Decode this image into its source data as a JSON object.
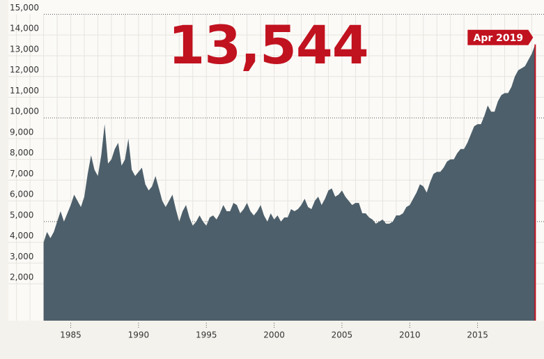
{
  "chart_data": {
    "type": "area",
    "headline": "13,544",
    "annotation": "Apr 2019",
    "color": "#4d5f6a",
    "accent": "#c1121f",
    "grid": true,
    "xlim": [
      1980.4,
      2019.9
    ],
    "xticks": [
      1985,
      1990,
      1995,
      2000,
      2005,
      2010,
      2015
    ],
    "ylim": [
      220,
      15000
    ],
    "yticks": [
      {
        "value": 2000,
        "label": "2,000"
      },
      {
        "value": 3000,
        "label": "3,000"
      },
      {
        "value": 4000,
        "label": "4,000"
      },
      {
        "value": 5000,
        "label": "5,000"
      },
      {
        "value": 6000,
        "label": "6,000"
      },
      {
        "value": 7000,
        "label": "7,000"
      },
      {
        "value": 8000,
        "label": "8,000"
      },
      {
        "value": 9000,
        "label": "9,000"
      },
      {
        "value": 10000,
        "label": "10,000"
      },
      {
        "value": 11000,
        "label": "11,000"
      },
      {
        "value": 12000,
        "label": "12,000"
      },
      {
        "value": 13000,
        "label": "13,000"
      },
      {
        "value": 14000,
        "label": "14,000"
      },
      {
        "value": 15000,
        "label": "15,000"
      }
    ],
    "x": [
      1983,
      1983.25,
      1983.5,
      1983.75,
      1984,
      1984.25,
      1984.5,
      1984.75,
      1985,
      1985.25,
      1985.5,
      1985.75,
      1986,
      1986.25,
      1986.5,
      1986.75,
      1987,
      1987.25,
      1987.5,
      1987.75,
      1988,
      1988.25,
      1988.5,
      1988.75,
      1989,
      1989.25,
      1989.5,
      1989.75,
      1990,
      1990.25,
      1990.5,
      1990.75,
      1991,
      1991.25,
      1991.5,
      1991.75,
      1992,
      1992.25,
      1992.5,
      1992.75,
      1993,
      1993.25,
      1993.5,
      1993.75,
      1994,
      1994.25,
      1994.5,
      1994.75,
      1995,
      1995.25,
      1995.5,
      1995.75,
      1996,
      1996.25,
      1996.5,
      1996.75,
      1997,
      1997.25,
      1997.5,
      1997.75,
      1998,
      1998.25,
      1998.5,
      1998.75,
      1999,
      1999.25,
      1999.5,
      1999.75,
      2000,
      2000.25,
      2000.5,
      2000.75,
      2001,
      2001.25,
      2001.5,
      2001.75,
      2002,
      2002.25,
      2002.5,
      2002.75,
      2003,
      2003.25,
      2003.5,
      2003.75,
      2004,
      2004.25,
      2004.5,
      2004.75,
      2005,
      2005.25,
      2005.5,
      2005.75,
      2006,
      2006.25,
      2006.5,
      2006.75,
      2007,
      2007.25,
      2007.5,
      2007.75,
      2008,
      2008.25,
      2008.5,
      2008.75,
      2009,
      2009.25,
      2009.5,
      2009.75,
      2010,
      2010.25,
      2010.5,
      2010.75,
      2011,
      2011.25,
      2011.5,
      2011.75,
      2012,
      2012.25,
      2012.5,
      2012.75,
      2013,
      2013.25,
      2013.5,
      2013.75,
      2014,
      2014.25,
      2014.5,
      2014.75,
      2015,
      2015.25,
      2015.5,
      2015.75,
      2016,
      2016.25,
      2016.5,
      2016.75,
      2017,
      2017.25,
      2017.5,
      2017.75,
      2018,
      2018.25,
      2018.5,
      2018.75,
      2019,
      2019.25
    ],
    "values": [
      4000,
      4500,
      4200,
      4500,
      5000,
      5500,
      5000,
      5400,
      5800,
      6300,
      6000,
      5700,
      6200,
      7300,
      8200,
      7500,
      7200,
      8200,
      9700,
      7800,
      8000,
      8500,
      8800,
      7700,
      8000,
      9000,
      7500,
      7200,
      7400,
      7600,
      6800,
      6500,
      6700,
      7200,
      6600,
      6000,
      5700,
      6000,
      6300,
      5600,
      5000,
      5500,
      5800,
      5200,
      4800,
      5000,
      5300,
      5000,
      4800,
      5200,
      5300,
      5100,
      5400,
      5800,
      5500,
      5500,
      5900,
      5800,
      5400,
      5600,
      5900,
      5500,
      5300,
      5500,
      5800,
      5300,
      5000,
      5400,
      5100,
      5300,
      5000,
      5200,
      5200,
      5600,
      5500,
      5600,
      5800,
      6100,
      5700,
      5600,
      6000,
      6200,
      5800,
      6100,
      6500,
      6600,
      6200,
      6300,
      6500,
      6200,
      6000,
      5800,
      5900,
      5900,
      5400,
      5400,
      5200,
      5100,
      4900,
      5000,
      5100,
      4900,
      4900,
      5000,
      5300,
      5300,
      5400,
      5700,
      5800,
      6100,
      6400,
      6800,
      6700,
      6400,
      6900,
      7300,
      7400,
      7400,
      7600,
      7900,
      8000,
      8000,
      8300,
      8500,
      8500,
      8800,
      9200,
      9600,
      9700,
      9700,
      10100,
      10600,
      10300,
      10300,
      10800,
      11100,
      11200,
      11200,
      11500,
      12000,
      12300,
      12400,
      12500,
      12800,
      13100,
      13544
    ]
  }
}
